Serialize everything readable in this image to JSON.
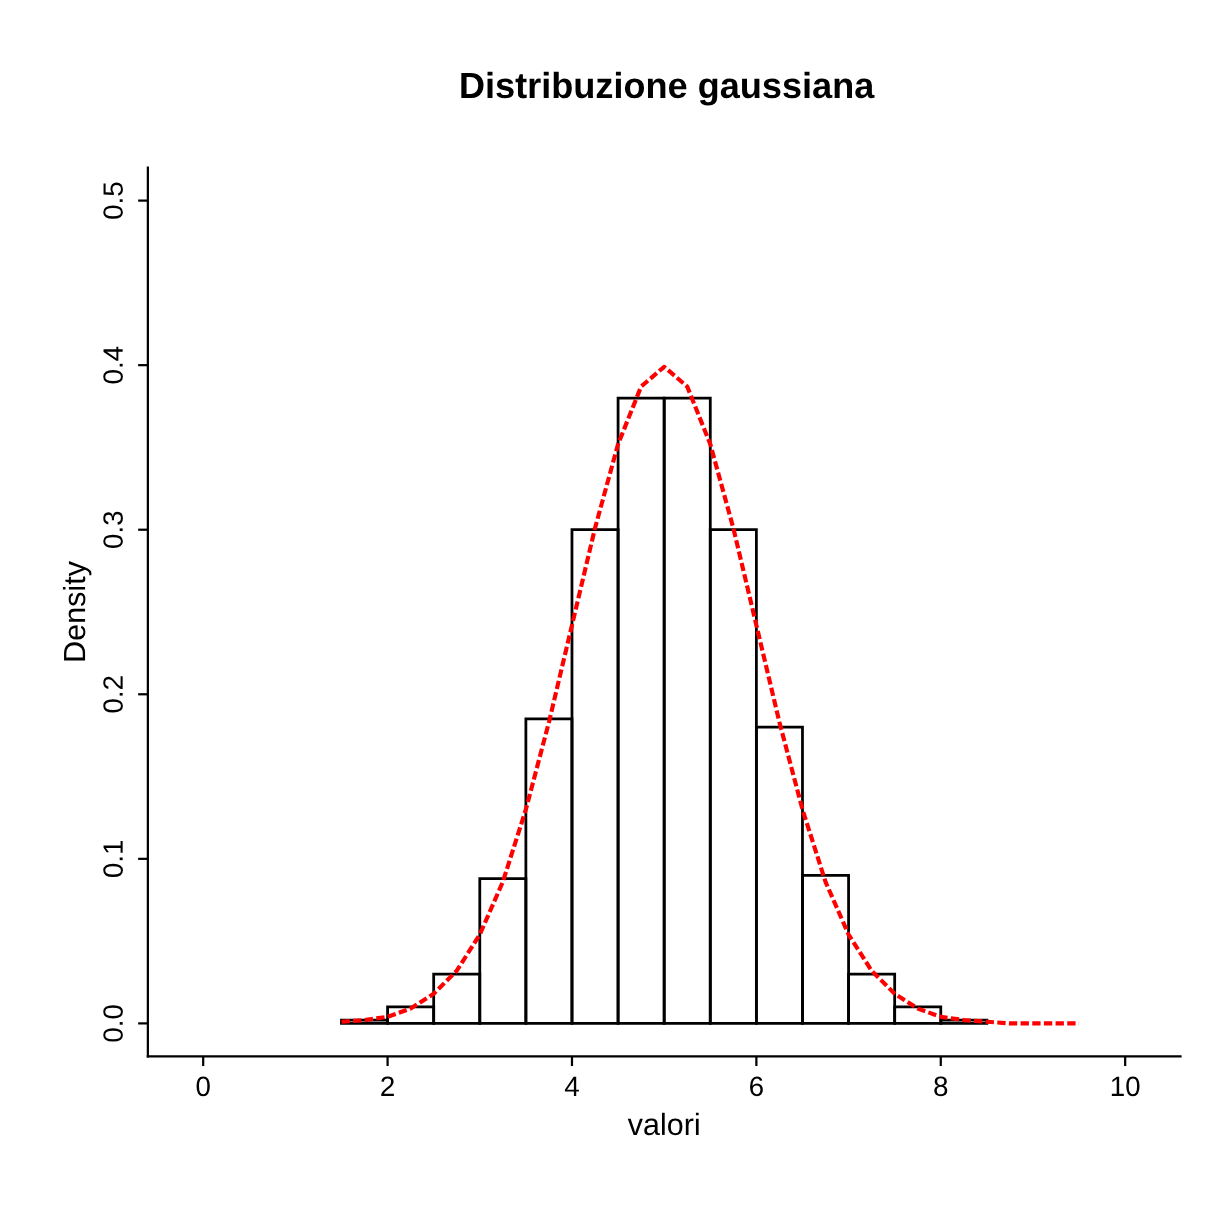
{
  "chart_data": {
    "type": "histogram",
    "title": "Distribuzione gaussiana",
    "xlabel": "valori",
    "ylabel": "Density",
    "bins": [
      1.5,
      2,
      2.5,
      3,
      3.5,
      4,
      4.5,
      5,
      5.5,
      6,
      6.5,
      7,
      7.5,
      8,
      8.5
    ],
    "values": [
      0.002,
      0.01,
      0.03,
      0.088,
      0.185,
      0.3,
      0.38,
      0.38,
      0.3,
      0.18,
      0.09,
      0.03,
      0.01,
      0.002
    ],
    "color": "#000000",
    "series": [
      {
        "type": "line",
        "color": "#ff0000",
        "line_style": "dotted",
        "x": [
          1.5,
          1.75,
          2,
          2.25,
          2.5,
          2.75,
          3,
          3.25,
          3.5,
          3.75,
          4,
          4.25,
          4.5,
          4.75,
          5,
          5.25,
          5.5,
          5.75,
          6,
          6.25,
          6.5,
          6.75,
          7,
          7.25,
          7.5,
          7.75,
          8,
          8.25,
          8.5,
          8.75,
          9,
          9.25,
          9.5
        ],
        "values": [
          0.001,
          0.002,
          0.004,
          0.009,
          0.018,
          0.032,
          0.054,
          0.086,
          0.13,
          0.183,
          0.242,
          0.301,
          0.352,
          0.387,
          0.399,
          0.387,
          0.352,
          0.301,
          0.242,
          0.183,
          0.13,
          0.086,
          0.054,
          0.032,
          0.018,
          0.009,
          0.004,
          0.002,
          0.001,
          0.0,
          0.0,
          0.0,
          0.0
        ]
      }
    ],
    "xlim": [
      -0.6,
      10.6
    ],
    "ylim": [
      -0.02,
      0.52
    ],
    "xticks": [
      0,
      2,
      4,
      6,
      8,
      10
    ],
    "yticks": [
      {
        "value": 0,
        "label": "0.0"
      },
      {
        "value": 0.1,
        "label": "0.1"
      },
      {
        "value": 0.2,
        "label": "0.2"
      },
      {
        "value": 0.3,
        "label": "0.3"
      },
      {
        "value": 0.4,
        "label": "0.4"
      },
      {
        "value": 0.5,
        "label": "0.5"
      }
    ],
    "grid": false,
    "legend": false
  }
}
